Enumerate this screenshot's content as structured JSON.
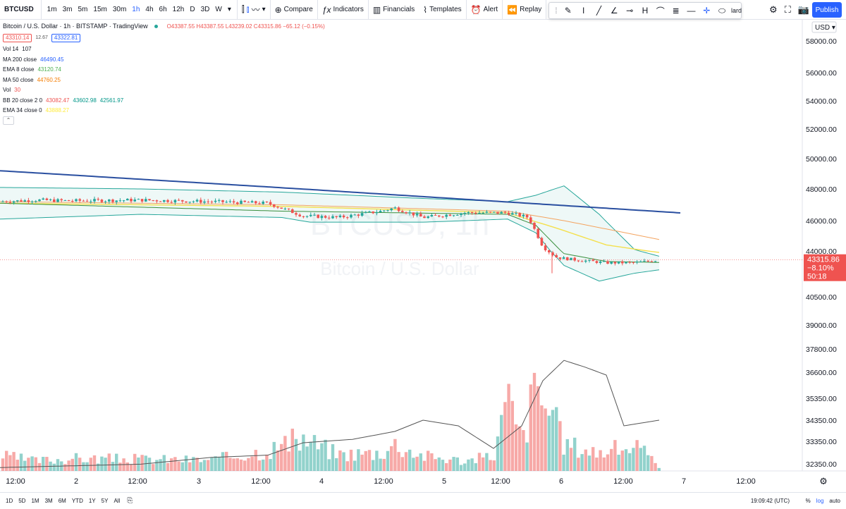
{
  "toolbar": {
    "symbol": "BTCUSD",
    "intervals": [
      "1m",
      "3m",
      "5m",
      "15m",
      "30m",
      "1h",
      "4h",
      "6h",
      "12h",
      "D",
      "3D",
      "W"
    ],
    "active_interval": "1h",
    "compare": "Compare",
    "indicators": "Indicators",
    "financials": "Financials",
    "templates": "Templates",
    "alert": "Alert",
    "replay": "Replay",
    "partial": "lard",
    "publish": "Publish"
  },
  "legend": {
    "title": "Bitcoin / U.S. Dollar · 1h · BITSTAMP · TradingView",
    "ohlc": "O43387.55 H43387.55 L43239.02 C43315.86 −65.12 (−0.15%)",
    "bid": "43310.14",
    "spread": "12.67",
    "ask": "43322.81",
    "rows": [
      {
        "label": "Vol 14",
        "values": [
          {
            "v": "107",
            "color": "#131722"
          }
        ]
      },
      {
        "label": "MA 200 close",
        "values": [
          {
            "v": "46490.45",
            "color": "#2962ff"
          }
        ]
      },
      {
        "label": "EMA 8 close",
        "values": [
          {
            "v": "43120.74",
            "color": "#4caf50"
          }
        ]
      },
      {
        "label": "MA 50 close",
        "values": [
          {
            "v": "44760.25",
            "color": "#f57c00"
          }
        ]
      },
      {
        "label": "Vol",
        "values": [
          {
            "v": "30",
            "color": "#ef5350"
          }
        ]
      },
      {
        "label": "BB 20 close 2 0",
        "values": [
          {
            "v": "43082.47",
            "color": "#ef5350"
          },
          {
            "v": "43602.98",
            "color": "#009688"
          },
          {
            "v": "42561.97",
            "color": "#009688"
          }
        ]
      },
      {
        "label": "EMA 34 close 0",
        "values": [
          {
            "v": "43888.27",
            "color": "#ffeb3b"
          }
        ]
      }
    ]
  },
  "chart_data": {
    "type": "candlestick",
    "watermark": "BTCUSD, 1h",
    "watermark_sub": "Bitcoin / U.S. Dollar",
    "y_ticks": [
      "58000.00",
      "56000.00",
      "54000.00",
      "52000.00",
      "50000.00",
      "48000.00",
      "46000.00",
      "44000.00",
      "40500.00",
      "39000.00",
      "37800.00",
      "36600.00",
      "35350.00",
      "34350.00",
      "33350.00",
      "32350.00"
    ],
    "x_ticks": [
      "12:00",
      "2",
      "12:00",
      "3",
      "12:00",
      "4",
      "12:00",
      "5",
      "12:00",
      "6",
      "12:00",
      "7",
      "12:00"
    ],
    "currency": "USD",
    "last_price": "43315.86",
    "last_change": "−8.10%",
    "countdown": "50:18",
    "colors": {
      "up": "#26a69a",
      "down": "#ef5350",
      "ma200": "#2a4fa0",
      "ema8": "#388e3c",
      "ma50": "#f4a460",
      "ema34": "#f4e04d",
      "bb": "#26a69a",
      "vol_line": "#555555"
    },
    "price_segments": [
      [
        0,
        47200
      ],
      [
        50,
        47300
      ],
      [
        100,
        47250
      ],
      [
        200,
        47300
      ],
      [
        300,
        47200
      ],
      [
        380,
        47100
      ],
      [
        430,
        46300
      ],
      [
        480,
        46200
      ],
      [
        540,
        46600
      ],
      [
        560,
        46800
      ],
      [
        600,
        46200
      ],
      [
        660,
        46500
      ],
      [
        720,
        46500
      ],
      [
        750,
        46200
      ],
      [
        770,
        44300
      ],
      [
        790,
        43500
      ],
      [
        820,
        43300
      ],
      [
        860,
        43100
      ],
      [
        900,
        43100
      ],
      [
        935,
        43316
      ]
    ],
    "ma200": [
      [
        0,
        49200
      ],
      [
        965,
        46490
      ]
    ],
    "ma50": [
      [
        0,
        47200
      ],
      [
        400,
        47000
      ],
      [
        720,
        46600
      ],
      [
        800,
        46000
      ],
      [
        935,
        44760
      ]
    ],
    "ema34": [
      [
        0,
        47100
      ],
      [
        400,
        46900
      ],
      [
        720,
        46500
      ],
      [
        790,
        45500
      ],
      [
        860,
        44400
      ],
      [
        935,
        43888
      ]
    ],
    "ema8": [
      [
        0,
        47100
      ],
      [
        400,
        46600
      ],
      [
        720,
        46400
      ],
      [
        760,
        45700
      ],
      [
        800,
        43800
      ],
      [
        860,
        43200
      ],
      [
        935,
        43120
      ]
    ],
    "bb_upper": [
      [
        0,
        48100
      ],
      [
        200,
        48000
      ],
      [
        400,
        47800
      ],
      [
        500,
        47600
      ],
      [
        600,
        47400
      ],
      [
        720,
        47200
      ],
      [
        760,
        47600
      ],
      [
        800,
        48200
      ],
      [
        850,
        46400
      ],
      [
        900,
        44100
      ],
      [
        935,
        43600
      ]
    ],
    "bb_lower": [
      [
        0,
        46100
      ],
      [
        200,
        46400
      ],
      [
        400,
        46200
      ],
      [
        440,
        45900
      ],
      [
        600,
        45900
      ],
      [
        720,
        46100
      ],
      [
        760,
        45200
      ],
      [
        800,
        42900
      ],
      [
        850,
        41700
      ],
      [
        900,
        42300
      ],
      [
        935,
        42560
      ]
    ],
    "volume": [
      [
        0,
        0.18
      ],
      [
        50,
        0.12
      ],
      [
        100,
        0.15
      ],
      [
        200,
        0.14
      ],
      [
        300,
        0.13
      ],
      [
        380,
        0.25
      ],
      [
        430,
        0.38
      ],
      [
        480,
        0.2
      ],
      [
        540,
        0.22
      ],
      [
        560,
        0.32
      ],
      [
        600,
        0.18
      ],
      [
        660,
        0.12
      ],
      [
        700,
        0.18
      ],
      [
        720,
        0.85
      ],
      [
        740,
        0.35
      ],
      [
        760,
        1.0
      ],
      [
        780,
        0.7
      ],
      [
        800,
        0.32
      ],
      [
        850,
        0.22
      ],
      [
        900,
        0.3
      ],
      [
        935,
        0.06
      ]
    ],
    "volume_ma": [
      [
        0,
        0.03
      ],
      [
        200,
        0.06
      ],
      [
        300,
        0.12
      ],
      [
        380,
        0.14
      ],
      [
        430,
        0.25
      ],
      [
        500,
        0.28
      ],
      [
        560,
        0.35
      ],
      [
        600,
        0.45
      ],
      [
        650,
        0.4
      ],
      [
        700,
        0.2
      ],
      [
        740,
        0.4
      ],
      [
        770,
        0.8
      ],
      [
        800,
        0.98
      ],
      [
        830,
        0.92
      ],
      [
        860,
        0.85
      ],
      [
        885,
        0.4
      ],
      [
        935,
        0.45
      ]
    ]
  },
  "bottom": {
    "ranges": [
      "1D",
      "5D",
      "1M",
      "3M",
      "6M",
      "YTD",
      "1Y",
      "5Y",
      "All"
    ],
    "clock": "19:09:42 (UTC)",
    "percent": "%",
    "log": "log",
    "auto": "auto"
  }
}
